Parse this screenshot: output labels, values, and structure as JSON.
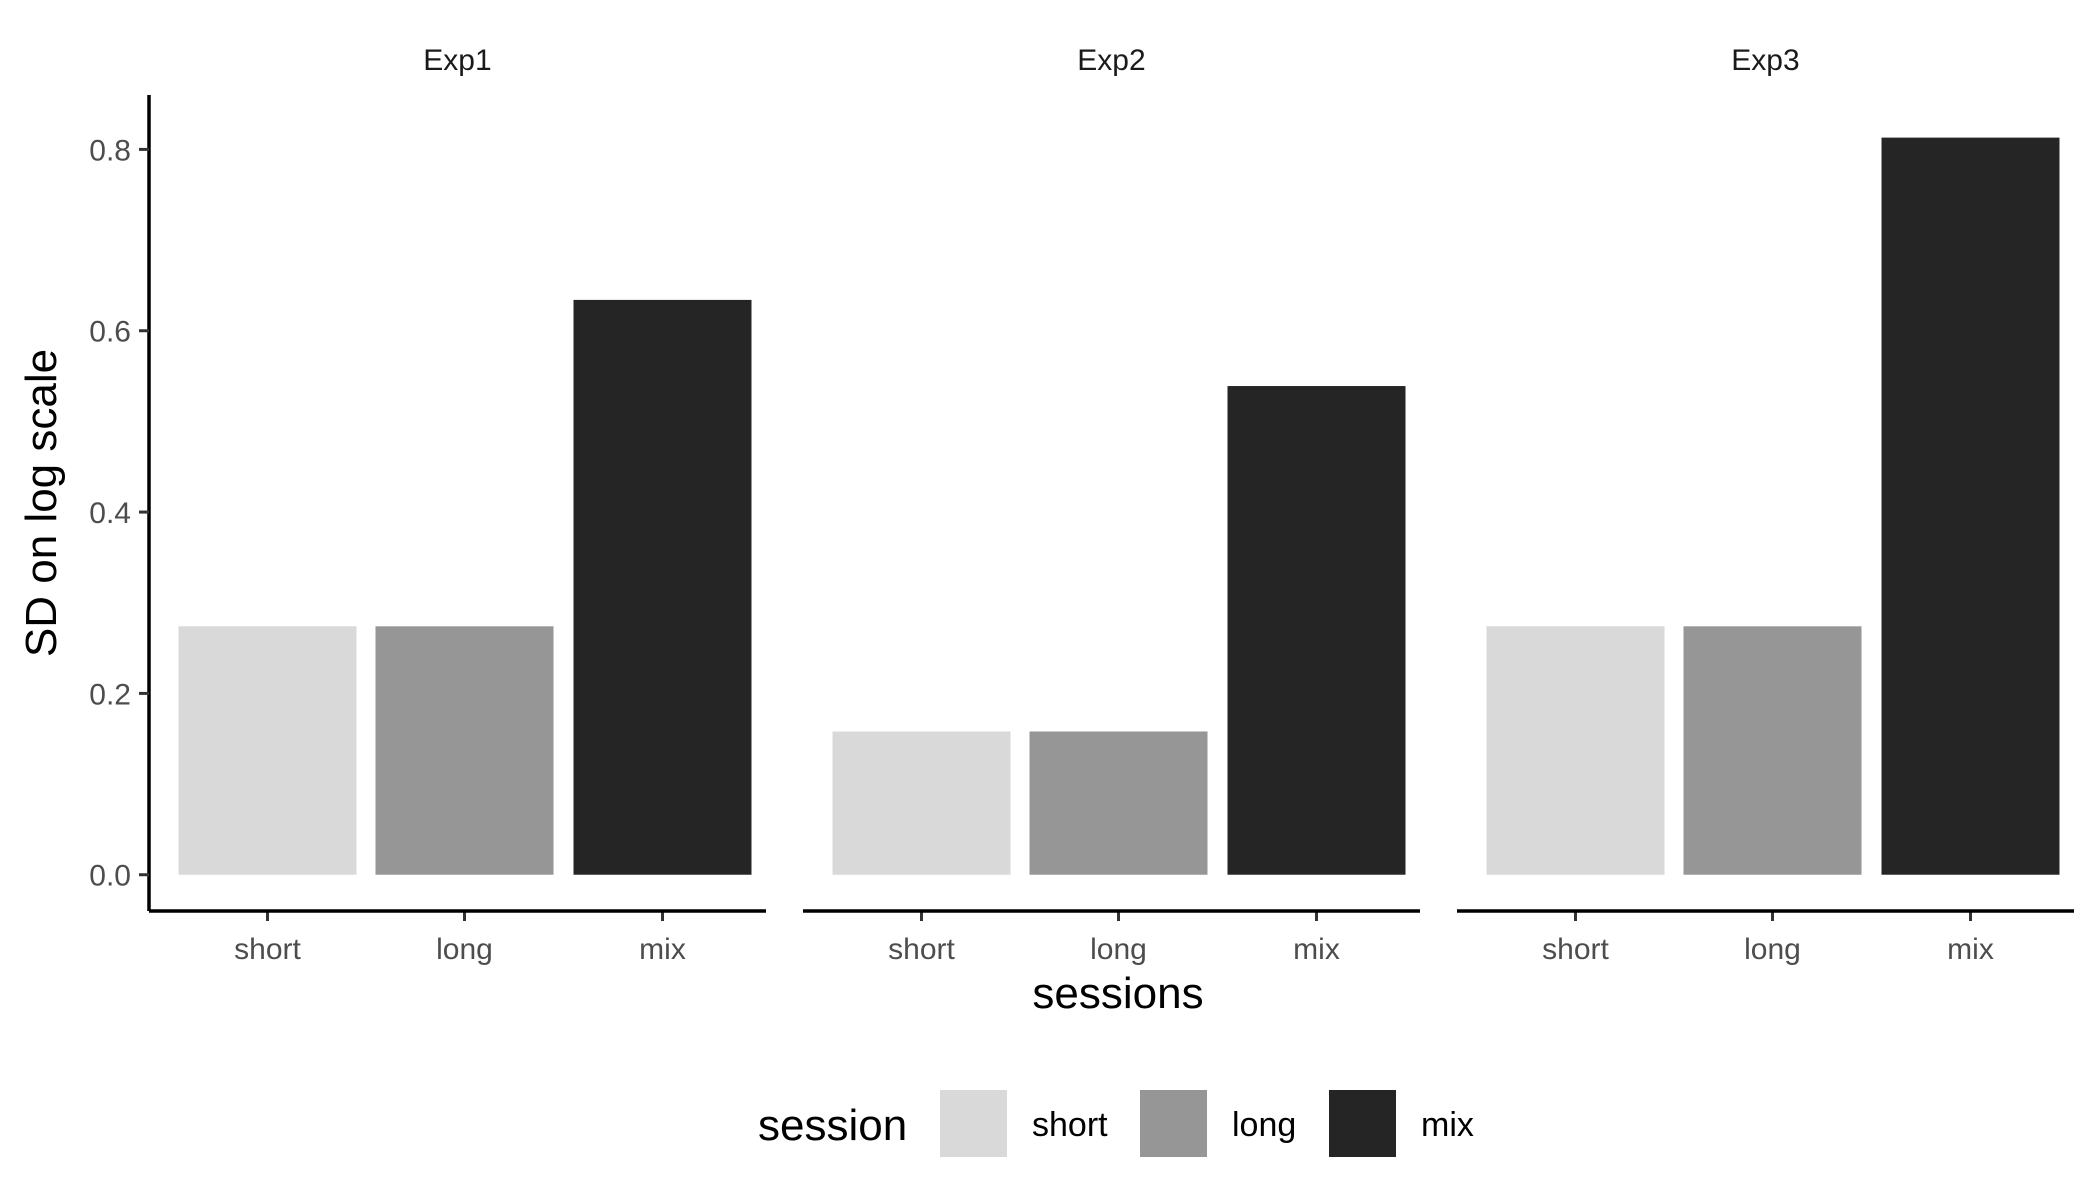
{
  "chart_data": {
    "type": "bar",
    "facets": [
      "Exp1",
      "Exp2",
      "Exp3"
    ],
    "categories": [
      "short",
      "long",
      "mix"
    ],
    "series": [
      {
        "facet": "Exp1",
        "values": [
          0.274,
          0.274,
          0.634
        ]
      },
      {
        "facet": "Exp2",
        "values": [
          0.158,
          0.158,
          0.539
        ]
      },
      {
        "facet": "Exp3",
        "values": [
          0.274,
          0.274,
          0.813
        ]
      }
    ],
    "colors": {
      "short": "#d9d9d9",
      "long": "#969696",
      "mix": "#252525"
    },
    "xlabel": "sessions",
    "ylabel": "SD on log scale",
    "ylim": [
      -0.04,
      0.86
    ],
    "yticks": [
      0.0,
      0.2,
      0.4,
      0.6,
      0.8
    ],
    "ytick_labels": [
      "0.0",
      "0.2",
      "0.4",
      "0.6",
      "0.8"
    ],
    "grid": false,
    "legend": {
      "title": "session",
      "position": "bottom",
      "entries": [
        "short",
        "long",
        "mix"
      ]
    }
  }
}
